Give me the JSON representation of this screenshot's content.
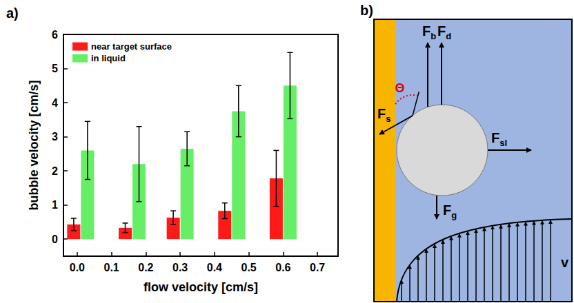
{
  "panel_labels": [
    "a)",
    "b)"
  ],
  "chart_data": {
    "type": "bar",
    "xlabel": "flow velocity [cm/s]",
    "ylabel": "bubble velocity [cm/s]",
    "x": [
      0.01,
      0.16,
      0.3,
      0.45,
      0.6
    ],
    "xlim": [
      -0.04,
      0.76
    ],
    "xticks": [
      {
        "value": 0,
        "label": "0.0"
      },
      {
        "value": 0.1,
        "label": "0.1"
      },
      {
        "value": 0.2,
        "label": "0.2"
      },
      {
        "value": 0.3,
        "label": "0.3"
      },
      {
        "value": 0.4,
        "label": "0.4"
      },
      {
        "value": 0.5,
        "label": "0.5"
      },
      {
        "value": 0.6,
        "label": "0.6"
      },
      {
        "value": 0.7,
        "label": "0.7"
      }
    ],
    "ylim": [
      -0.5,
      6
    ],
    "yticks": [
      0,
      1,
      2,
      3,
      4,
      5,
      6
    ],
    "grid": false,
    "legend": "upper left",
    "series": [
      {
        "name": "near target surface",
        "color": "#ff1a1a",
        "values": [
          0.43,
          0.33,
          0.63,
          0.83,
          1.78
        ],
        "errors": [
          0.18,
          0.14,
          0.2,
          0.23,
          0.82
        ]
      },
      {
        "name": "in liquid",
        "color": "#66ee66",
        "values": [
          2.6,
          2.2,
          2.65,
          3.75,
          4.5
        ],
        "errors": [
          0.85,
          1.1,
          0.5,
          0.75,
          0.97
        ]
      }
    ]
  },
  "diagram": {
    "force_labels": [
      {
        "text": "F",
        "sub": "b"
      },
      {
        "text": "F",
        "sub": "d"
      },
      {
        "text": "F",
        "sub": "s"
      },
      {
        "text": "F",
        "sub": "sl"
      },
      {
        "text": "F",
        "sub": "g"
      }
    ],
    "angle_label": "Θ",
    "flow_label": "v"
  }
}
